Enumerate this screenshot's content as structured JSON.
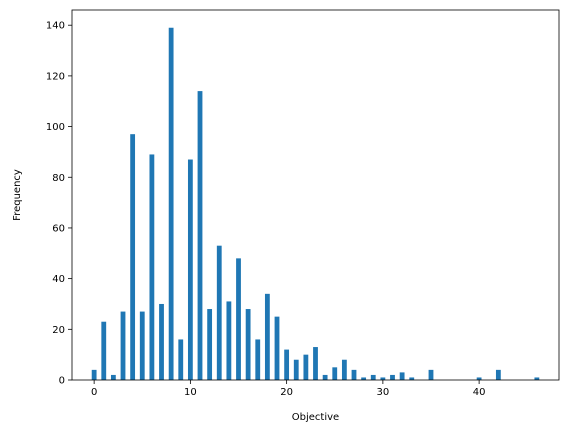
{
  "chart_data": {
    "type": "bar",
    "title": "",
    "xlabel": "Objective",
    "ylabel": "Frequency",
    "xlim": [
      -2.3,
      48.3
    ],
    "ylim": [
      0,
      146
    ],
    "xticks": [
      0,
      10,
      20,
      30,
      40
    ],
    "yticks": [
      0,
      20,
      40,
      60,
      80,
      100,
      120,
      140
    ],
    "grid": false,
    "bar_color": "#1f77b4",
    "bar_width": 0.5,
    "x": [
      0,
      1,
      2,
      3,
      4,
      5,
      6,
      7,
      8,
      9,
      10,
      11,
      12,
      13,
      14,
      15,
      16,
      17,
      18,
      19,
      20,
      21,
      22,
      23,
      24,
      25,
      26,
      27,
      28,
      29,
      30,
      31,
      32,
      33,
      35,
      40,
      42,
      46
    ],
    "values": [
      4,
      23,
      2,
      27,
      97,
      27,
      89,
      30,
      139,
      16,
      87,
      114,
      28,
      53,
      31,
      48,
      28,
      16,
      34,
      25,
      12,
      8,
      10,
      13,
      2,
      5,
      8,
      4,
      1,
      2,
      1,
      2,
      3,
      1,
      4,
      1,
      4,
      1
    ]
  }
}
